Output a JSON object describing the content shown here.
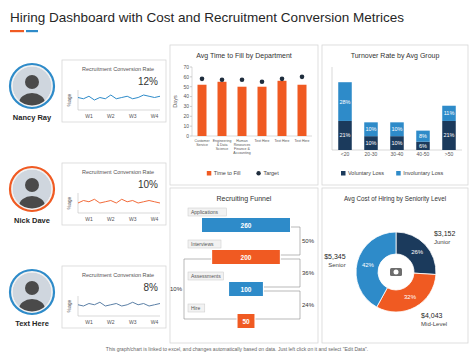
{
  "title": "Hiring Dashboard with Cost and Recruitment Conversion Metrices",
  "footer": "This graph/chart is linked to excel, and changes automatically based on data. Just left click on it and select \"Edit Data\".",
  "chart_data": [
    {
      "type": "line",
      "title": "Recruitment Conversion Rate",
      "person": "Nancy Ray",
      "annotations": [
        "12%"
      ],
      "y_label": "%age",
      "categories": [
        null,
        null,
        "W1",
        null,
        null,
        null,
        "W2",
        null,
        null,
        null,
        "W3",
        null,
        null,
        null,
        "W4",
        null
      ],
      "values": [
        10,
        9,
        11,
        8,
        10,
        9,
        12,
        9,
        10,
        11,
        9,
        10,
        12,
        11,
        10,
        11
      ],
      "color": "#2e8bc9",
      "ylim": [
        0,
        16
      ],
      "tick_labels": "x"
    },
    {
      "type": "line",
      "title": "Recruitment Conversion Rate",
      "person": "Nick Dave",
      "annotations": [
        "10%"
      ],
      "y_label": "%age",
      "categories": [
        null,
        null,
        "W1",
        null,
        null,
        null,
        "W2",
        null,
        null,
        null,
        "W3",
        null,
        null,
        null,
        "W4",
        null
      ],
      "values": [
        8,
        10,
        9,
        11,
        8,
        9,
        10,
        8,
        11,
        9,
        10,
        8,
        9,
        10,
        9,
        8
      ],
      "color": "#f26b3a",
      "ylim": [
        0,
        16
      ],
      "tick_labels": "x"
    },
    {
      "type": "line",
      "title": "Recruitment Conversion Rate",
      "person": "Text Here",
      "annotations": [
        "8%"
      ],
      "y_label": "%age",
      "categories": [
        null,
        null,
        "W1",
        null,
        null,
        null,
        "W2",
        null,
        null,
        null,
        "W3",
        null,
        null,
        null,
        "W4",
        null
      ],
      "values": [
        9,
        8,
        10,
        9,
        11,
        8,
        9,
        10,
        8,
        9,
        11,
        9,
        10,
        8,
        9,
        10
      ],
      "color": "#5b7fa6",
      "ylim": [
        0,
        16
      ],
      "tick_labels": "x"
    },
    {
      "type": "bar",
      "title": "Avg Time to Fill by Department",
      "y_label": "Days",
      "categories": [
        "Customer Service",
        "Engineering & Data Science",
        "Human Resources Finance & Accounting",
        "Text Here",
        "Text Here",
        "Text Here"
      ],
      "series": [
        {
          "name": "Time to Fill",
          "type": "bar",
          "color": "#f05a22",
          "values": [
            52,
            55,
            50,
            50,
            56,
            52
          ]
        },
        {
          "name": "Target",
          "type": "scatter",
          "marker": "circle",
          "color": "#1f2d3d",
          "values": [
            58,
            57,
            57,
            55,
            58,
            60
          ]
        }
      ],
      "ylim": [
        0,
        70
      ],
      "yticks": [
        0,
        10,
        20,
        30,
        40,
        50,
        60,
        70
      ],
      "grid": false,
      "legend": "bottom"
    },
    {
      "type": "bar",
      "title": "Turnover Rate by Avg Group",
      "stacked": true,
      "categories": [
        "<20",
        "20-30",
        "30-40",
        "40-50",
        ">50"
      ],
      "series": [
        {
          "name": "Voluntary Loss",
          "color": "#1b3a5c",
          "values": [
            21,
            10,
            10,
            6,
            21
          ],
          "value_labels": [
            "21%",
            "10%",
            "10%",
            "6%",
            "21%"
          ]
        },
        {
          "name": "Involuntary Loss",
          "color": "#2e8bc9",
          "values": [
            28,
            10,
            10,
            8,
            11
          ],
          "value_labels": [
            "28%",
            "10%",
            "10%",
            "8%",
            "11%"
          ]
        }
      ],
      "ylim": [
        0,
        60
      ],
      "data_labels": true,
      "tick_labels": "x",
      "legend": "bottom"
    },
    {
      "type": "funnel",
      "title": "Recruiting Funnel",
      "categories": [
        "Applications",
        "Interviews",
        "Assessments",
        "Hire"
      ],
      "values": [
        260,
        200,
        100,
        50
      ],
      "colors": [
        "#2e8bc9",
        "#f05a22",
        "#2e8bc9",
        "#f05a22"
      ],
      "data_labels": true,
      "annotations": [
        {
          "from": "Applications",
          "to": "Interviews",
          "text": "50%"
        },
        {
          "from": "Interviews",
          "to": "Assessments",
          "text": "36%"
        },
        {
          "from": "Assessments",
          "to": "Hire",
          "text": "24%"
        },
        {
          "from": "Interviews",
          "to": "Hire",
          "text": "10%"
        }
      ]
    },
    {
      "type": "pie",
      "title": "Avg Cost of Hiring by Seniority Level",
      "categories": [
        "Junior",
        "Mid-Level",
        "Senior"
      ],
      "values": [
        26,
        32,
        42
      ],
      "value_labels": [
        "26%",
        "32%",
        "42%"
      ],
      "colors": [
        "#1b3a5c",
        "#f05a22",
        "#2e8bc9"
      ],
      "data_labels": true,
      "annotations": [
        "$3,152",
        "$4,043",
        "$5,345"
      ]
    }
  ]
}
